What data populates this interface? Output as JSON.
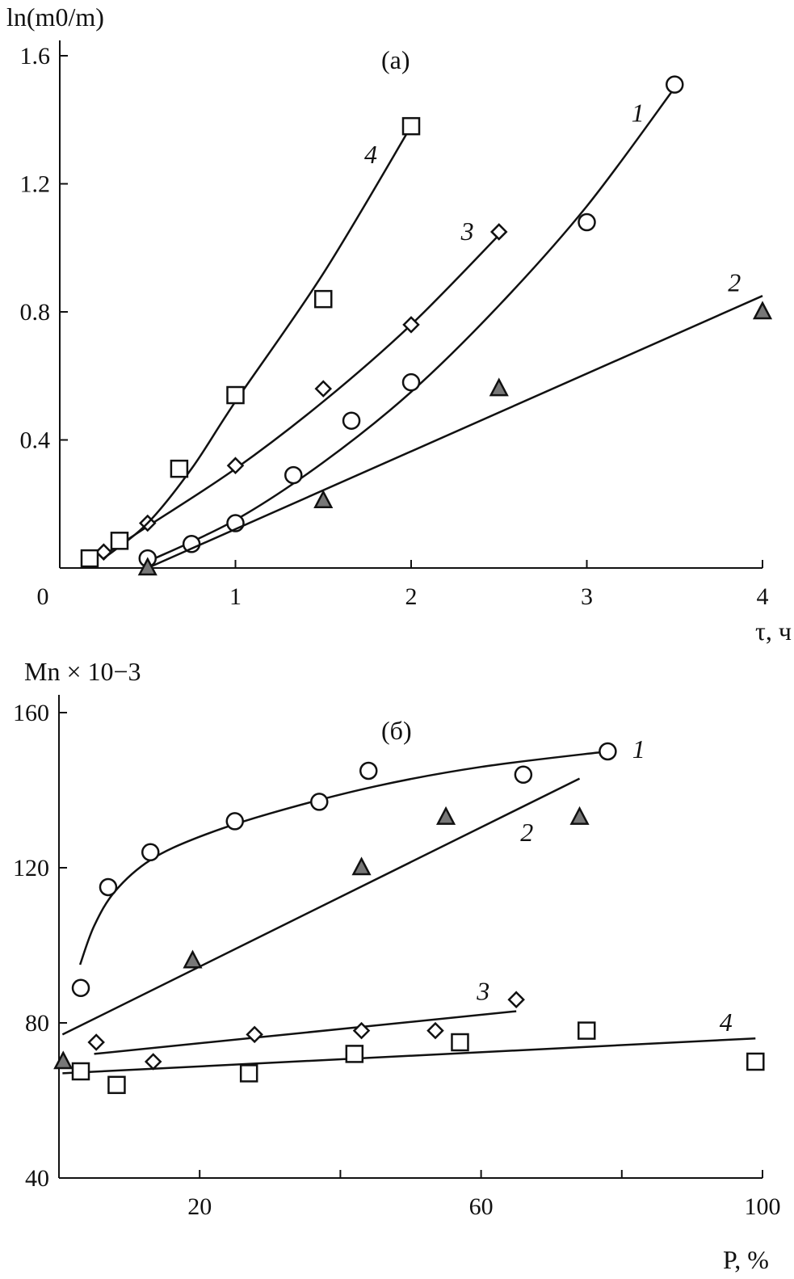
{
  "chart_data": [
    {
      "type": "scatter",
      "panel_label": "(a)",
      "ylabel": "ln(m0/m)",
      "ylabel_parts": {
        "pre": "ln(",
        "m": "m",
        "sub": "0",
        "post": "/",
        "m2": "m",
        ")": ")"
      },
      "xlabel": "τ, ч",
      "xlim": [
        0,
        4
      ],
      "ylim": [
        0,
        1.6
      ],
      "xticks": [
        "0",
        "1",
        "2",
        "3",
        "4"
      ],
      "yticks": [
        "0.4",
        "0.8",
        "1.2",
        "1.6"
      ],
      "grid": false,
      "series": [
        {
          "name": "1",
          "marker": "circle",
          "color": "#ffffff",
          "x": [
            0.5,
            0.75,
            1.0,
            1.33,
            1.66,
            2.0,
            3.0,
            3.5
          ],
          "y": [
            0.03,
            0.075,
            0.14,
            0.29,
            0.46,
            0.58,
            1.08,
            1.51
          ],
          "fit": [
            [
              0.5,
              0.02
            ],
            [
              1,
              0.15
            ],
            [
              1.5,
              0.33
            ],
            [
              2,
              0.55
            ],
            [
              2.5,
              0.82
            ],
            [
              3,
              1.13
            ],
            [
              3.5,
              1.5
            ]
          ],
          "label_at": [
            3.29,
            1.42
          ]
        },
        {
          "name": "2",
          "marker": "triangle",
          "color": "#777777",
          "x": [
            0.5,
            1.5,
            2.5,
            4.0
          ],
          "y": [
            0.0,
            0.21,
            0.56,
            0.8
          ],
          "fit": [
            [
              0.5,
              0
            ],
            [
              4,
              0.85
            ]
          ],
          "label_at": [
            3.84,
            0.89
          ]
        },
        {
          "name": "3",
          "marker": "diamond",
          "color": "#ffffff",
          "x": [
            0.25,
            0.5,
            1.0,
            1.5,
            2.0,
            2.5
          ],
          "y": [
            0.05,
            0.14,
            0.32,
            0.56,
            0.76,
            1.05
          ],
          "fit": [
            [
              0.25,
              0.04
            ],
            [
              0.5,
              0.13
            ],
            [
              1,
              0.31
            ],
            [
              1.5,
              0.52
            ],
            [
              2,
              0.76
            ],
            [
              2.5,
              1.04
            ]
          ],
          "label_at": [
            2.32,
            1.05
          ]
        },
        {
          "name": "4",
          "marker": "square",
          "color": "#ffffff",
          "x": [
            0.17,
            0.34,
            0.68,
            1.0,
            1.5,
            2.0
          ],
          "y": [
            0.03,
            0.085,
            0.31,
            0.54,
            0.84,
            1.38
          ],
          "fit": [
            [
              0.25,
              0.03
            ],
            [
              0.5,
              0.14
            ],
            [
              0.75,
              0.31
            ],
            [
              1,
              0.52
            ],
            [
              1.5,
              0.92
            ],
            [
              2,
              1.38
            ]
          ],
          "label_at": [
            1.77,
            1.29
          ]
        }
      ]
    },
    {
      "type": "scatter",
      "panel_label": "(б)",
      "ylabel": "Mn × 10−3",
      "ylabel_parts": {
        "m": "M",
        "sub": "n",
        "rest": " × 10",
        "sup": "−3"
      },
      "xlabel": "P, %",
      "xlabel_parts": {
        "p": "P",
        "rest": ", %"
      },
      "xlim": [
        0,
        100
      ],
      "ylim": [
        40,
        160
      ],
      "xticks": [
        "20",
        "60",
        "100"
      ],
      "yticks": [
        "40",
        "80",
        "120",
        "160"
      ],
      "grid": false,
      "series": [
        {
          "name": "1",
          "marker": "circle",
          "color": "#ffffff",
          "x": [
            3.1,
            7,
            13,
            25,
            37,
            44,
            66,
            78
          ],
          "y": [
            89,
            115,
            124,
            132,
            137,
            145,
            144,
            150
          ],
          "fit": [
            [
              3,
              95
            ],
            [
              5,
              105
            ],
            [
              8,
              114
            ],
            [
              13,
              122
            ],
            [
              20,
              128
            ],
            [
              30,
              134
            ],
            [
              45,
              141
            ],
            [
              60,
              146
            ],
            [
              78,
              150
            ]
          ],
          "label_at": [
            82.4,
            150.4
          ]
        },
        {
          "name": "2",
          "marker": "triangle",
          "color": "#777777",
          "x": [
            0.6,
            19,
            43,
            55,
            74
          ],
          "y": [
            70,
            96,
            120,
            133,
            133
          ],
          "fit": [
            [
              0.5,
              77
            ],
            [
              74,
              143
            ]
          ],
          "label_at": [
            66.5,
            129
          ]
        },
        {
          "name": "3",
          "marker": "diamond",
          "color": "#ffffff",
          "x": [
            5.3,
            13.4,
            27.8,
            43,
            53.5,
            65
          ],
          "y": [
            75,
            70,
            77,
            78,
            78,
            86
          ],
          "fit": [
            [
              5,
              72
            ],
            [
              65,
              83
            ]
          ],
          "label_at": [
            60.3,
            88
          ]
        },
        {
          "name": "4",
          "marker": "square",
          "color": "#ffffff",
          "x": [
            3.1,
            8.2,
            27,
            42,
            57,
            75,
            99
          ],
          "y": [
            67.5,
            64,
            67,
            72,
            75,
            78,
            70
          ],
          "fit": [
            [
              0.5,
              67
            ],
            [
              99,
              76
            ]
          ],
          "label_at": [
            94.8,
            80
          ]
        }
      ]
    }
  ]
}
